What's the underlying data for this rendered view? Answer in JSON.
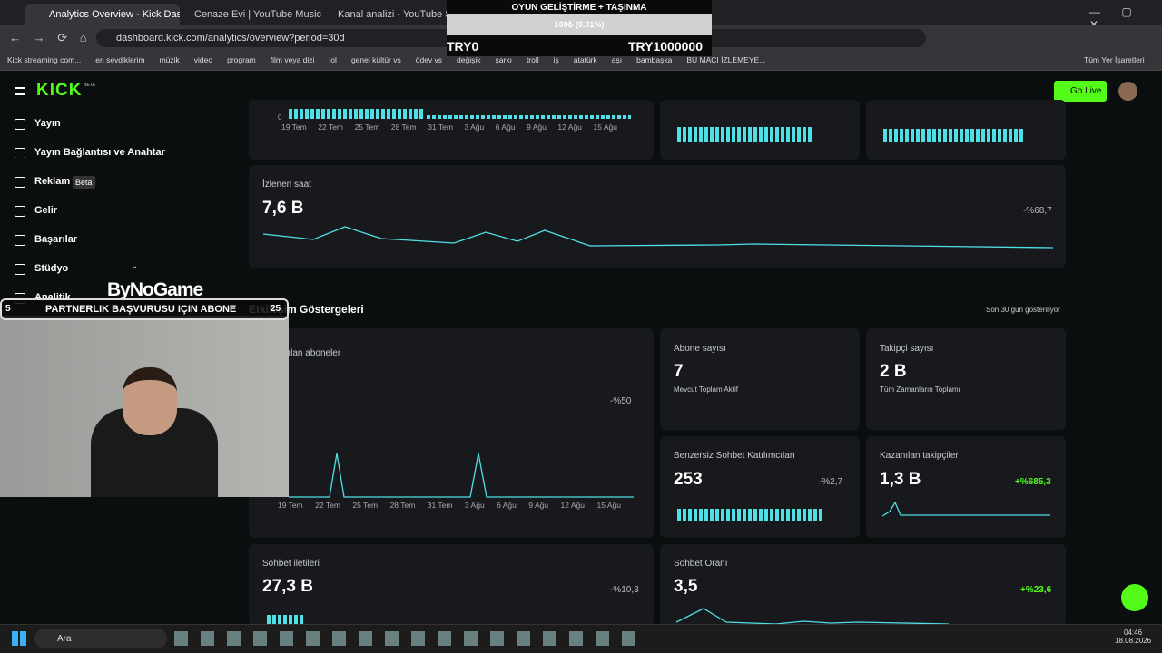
{
  "browser": {
    "tabs": [
      "Analytics Overview - Kick Dashb",
      "Cenaze Evi | YouTube Music",
      "Kanal analizi - YouTube Studio"
    ],
    "url": "dashboard.kick.com/analytics/overview?period=30d",
    "bookmarks": [
      "Kick streaming com...",
      "en sevdiklerim",
      "müzik",
      "video",
      "program",
      "film veya dizi",
      "lol",
      "genel kültür vs",
      "ödev vs",
      "değişik",
      "şarkı",
      "troll",
      "iş",
      "atatürk",
      "aşı",
      "bambaşka",
      "BU MAÇI İZLEMEYE..."
    ],
    "all_bookmarks": "Tüm Yer İşaretleri"
  },
  "stream_overlay": {
    "goal_title": "OYUN GELİŞTİRME + TAŞINMA",
    "goal_progress": "100₺ (0.01%)",
    "goal_min": "TRY0",
    "goal_max": "TRY1000000",
    "brand": "ByNoGame",
    "sub_count": "5",
    "sub_text": "PARTNERLIK BAŞVURUSU IÇIN ABONE",
    "sub_goal": "25"
  },
  "kick": {
    "logo": "KICK",
    "beta_badge": "BETA",
    "go_live": "Go Live",
    "sidebar": [
      "Yayın",
      "Yayın Bağlantısı ve Anahtar",
      "Reklam",
      "Gelir",
      "Başarılar",
      "Stüdyo",
      "Analitik"
    ],
    "sidebar_badge": "Beta",
    "dates": [
      "19 Tem",
      "22 Tem",
      "25 Tem",
      "28 Tem",
      "31 Tem",
      "3 Ağu",
      "6 Ağu",
      "9 Ağu",
      "12 Ağu",
      "15 Ağu"
    ],
    "axis_zero": "0",
    "watch_hours": {
      "title": "İzlenen saat",
      "value": "7,6 B",
      "change": "-%68,7"
    },
    "section_title": "Etkileşim Göstergeleri",
    "section_note": "Son 30 gün gösteriliyor",
    "cards": [
      {
        "title": "Kazanılan aboneler",
        "change": "-%50"
      },
      {
        "title": "Abone sayısı",
        "value": "7",
        "note": "Mevcut Toplam Aktif"
      },
      {
        "title": "Takipçi sayısı",
        "value": "2 B",
        "note": "Tüm Zamanların Toplamı"
      },
      {
        "title": "Benzersiz Sohbet Katılımcıları",
        "value": "253",
        "change": "-%2,7"
      },
      {
        "title": "Kazanılan takipçiler",
        "value": "1,3 B",
        "change": "+%685,3"
      },
      {
        "title": "Sohbet iletileri",
        "value": "27,3 B",
        "change": "-%10,3"
      },
      {
        "title": "Sohbet Oranı",
        "value": "3,5",
        "change": "+%23,6"
      }
    ]
  },
  "taskbar": {
    "search": "Ara",
    "time": "04:46",
    "date": "18.08.2026"
  }
}
